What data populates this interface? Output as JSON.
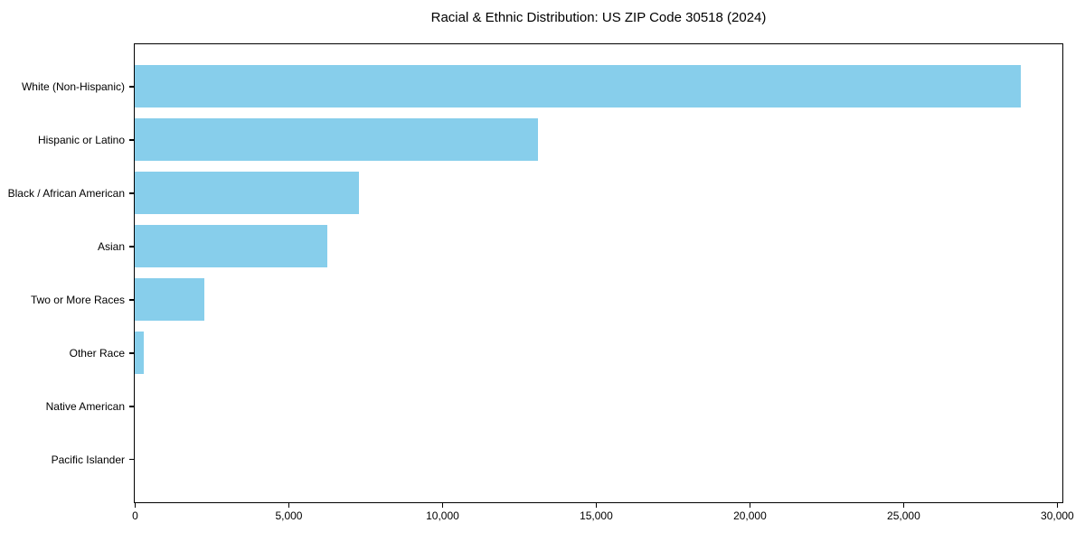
{
  "chart_data": {
    "type": "bar",
    "orientation": "horizontal",
    "title": "Racial & Ethnic Distribution: US ZIP Code 30518 (2024)",
    "xlabel": "",
    "ylabel": "",
    "categories": [
      "White (Non-Hispanic)",
      "Hispanic or Latino",
      "Black / African American",
      "Asian",
      "Two or More Races",
      "Other Race",
      "Native American",
      "Pacific Islander"
    ],
    "values": [
      28800,
      13100,
      7300,
      6250,
      2250,
      300,
      0,
      0
    ],
    "xlim": [
      0,
      30150
    ],
    "x_ticks": [
      0,
      5000,
      10000,
      15000,
      20000,
      25000,
      30000
    ],
    "x_tick_labels": [
      "0",
      "5,000",
      "10,000",
      "15,000",
      "20,000",
      "25,000",
      "30,000"
    ],
    "bar_color": "#87CEEB",
    "axis_color": "#000000",
    "text_color": "#000000",
    "background_color": "#ffffff",
    "grid": false,
    "legend": false
  }
}
